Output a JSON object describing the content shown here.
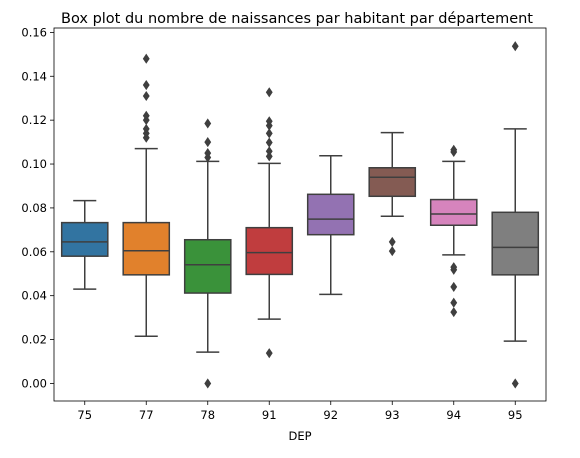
{
  "chart_data": {
    "type": "box",
    "title": "Box plot du nombre de naissances par habitant par département",
    "xlabel": "DEP",
    "ylabel": "",
    "ylim": [
      -0.008,
      0.162
    ],
    "yticks": [
      "0.00",
      "0.02",
      "0.04",
      "0.06",
      "0.08",
      "0.10",
      "0.12",
      "0.14",
      "0.16"
    ],
    "ytick_values": [
      0.0,
      0.02,
      0.04,
      0.06,
      0.08,
      0.1,
      0.12,
      0.14,
      0.16
    ],
    "grid": false,
    "categories": [
      "75",
      "77",
      "78",
      "91",
      "92",
      "93",
      "94",
      "95"
    ],
    "boxes": [
      {
        "category": "75",
        "whisker_low": 0.043,
        "q1": 0.058,
        "median": 0.0645,
        "q3": 0.0733,
        "whisker_high": 0.0833,
        "outliers": [],
        "color": "#3274a1"
      },
      {
        "category": "77",
        "whisker_low": 0.0215,
        "q1": 0.0495,
        "median": 0.0605,
        "q3": 0.0733,
        "whisker_high": 0.107,
        "outliers": [
          0.112,
          0.114,
          0.116,
          0.12,
          0.122,
          0.131,
          0.136,
          0.148
        ],
        "color": "#e1812c"
      },
      {
        "category": "78",
        "whisker_low": 0.0143,
        "q1": 0.0412,
        "median": 0.0541,
        "q3": 0.0655,
        "whisker_high": 0.1012,
        "outliers": [
          0.0,
          0.103,
          0.105,
          0.11,
          0.1185
        ],
        "color": "#3a923a"
      },
      {
        "category": "91",
        "whisker_low": 0.0293,
        "q1": 0.0497,
        "median": 0.0596,
        "q3": 0.071,
        "whisker_high": 0.1003,
        "outliers": [
          0.0138,
          0.1035,
          0.1058,
          0.1098,
          0.114,
          0.1175,
          0.1195,
          0.1327
        ],
        "color": "#c03d3e"
      },
      {
        "category": "92",
        "whisker_low": 0.0406,
        "q1": 0.0678,
        "median": 0.0749,
        "q3": 0.0862,
        "whisker_high": 0.1038,
        "outliers": [],
        "color": "#9372b2"
      },
      {
        "category": "93",
        "whisker_low": 0.0762,
        "q1": 0.0853,
        "median": 0.094,
        "q3": 0.0983,
        "whisker_high": 0.1143,
        "outliers": [
          0.0603,
          0.0645
        ],
        "color": "#845b53"
      },
      {
        "category": "94",
        "whisker_low": 0.0586,
        "q1": 0.0721,
        "median": 0.0772,
        "q3": 0.0838,
        "whisker_high": 0.1012,
        "outliers": [
          0.0325,
          0.0368,
          0.044,
          0.0518,
          0.053,
          0.1055,
          0.1065
        ],
        "color": "#d684bd"
      },
      {
        "category": "95",
        "whisker_low": 0.0193,
        "q1": 0.0495,
        "median": 0.062,
        "q3": 0.078,
        "whisker_high": 0.116,
        "outliers": [
          0.0,
          0.1537
        ],
        "color": "#7f7f7f"
      }
    ],
    "colors": {
      "edge": "#3f3f3f",
      "axis": "#000000"
    }
  }
}
